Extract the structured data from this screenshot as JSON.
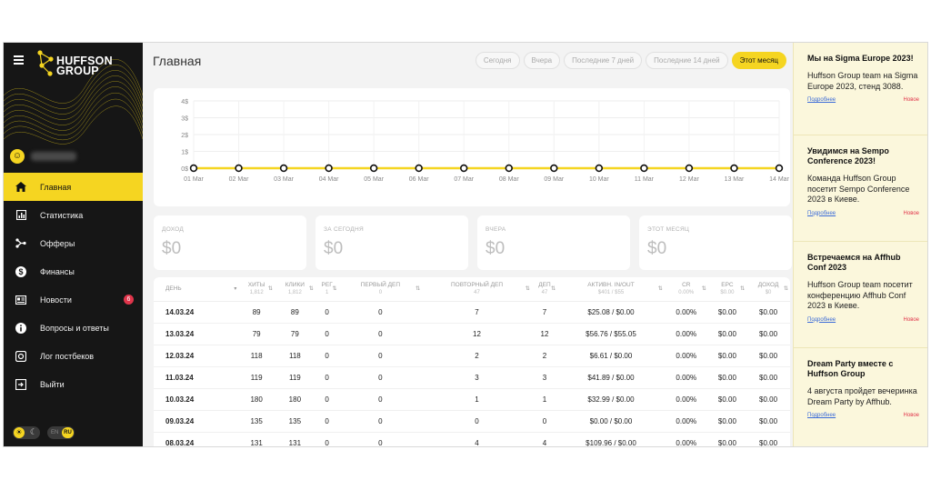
{
  "brand": {
    "logo_text_line1": "HUFFSON",
    "logo_text_line2": "GROUP",
    "accent": "#f5d521",
    "sidebar_bg": "#161616"
  },
  "sidebar": {
    "avatar_initial": "",
    "items": [
      {
        "label": "Главная",
        "icon": "home-icon",
        "active": true
      },
      {
        "label": "Статистика",
        "icon": "stats-icon"
      },
      {
        "label": "Офферы",
        "icon": "offers-icon"
      },
      {
        "label": "Финансы",
        "icon": "dollar-icon"
      },
      {
        "label": "Новости",
        "icon": "news-icon",
        "badge": "6"
      },
      {
        "label": "Вопросы и ответы",
        "icon": "info-icon"
      },
      {
        "label": "Лог постбеков",
        "icon": "log-icon"
      },
      {
        "label": "Выйти",
        "icon": "logout-icon"
      }
    ],
    "lang_en": "EN",
    "lang_ru": "RU"
  },
  "header": {
    "title": "Главная",
    "filters": [
      "Сегодня",
      "Вчера",
      "Последние 7 дней",
      "Последние 14 дней",
      "Этот месяц"
    ],
    "active_filter": "Этот месяц"
  },
  "chart_data": {
    "type": "line",
    "x": [
      "01 Mar",
      "02 Mar",
      "03 Mar",
      "04 Mar",
      "05 Mar",
      "06 Mar",
      "07 Mar",
      "08 Mar",
      "09 Mar",
      "10 Mar",
      "11 Mar",
      "12 Mar",
      "13 Mar",
      "14 Mar"
    ],
    "series": [
      {
        "values": [
          0,
          0,
          0,
          0,
          0,
          0,
          0,
          0,
          0,
          0,
          0,
          0,
          0,
          0
        ],
        "color": "#f5d521"
      }
    ],
    "yticks": [
      "4$",
      "3$",
      "2$",
      "1$",
      "0$"
    ],
    "ylim": [
      0,
      4
    ],
    "grid": true
  },
  "stats": [
    {
      "label": "ДОХОД",
      "value": "$0"
    },
    {
      "label": "ЗА СЕГОДНЯ",
      "value": "$0"
    },
    {
      "label": "ВЧЕРА",
      "value": "$0"
    },
    {
      "label": "ЭТОТ МЕСЯЦ",
      "value": "$0"
    }
  ],
  "table": {
    "columns": [
      {
        "label": "ДЕНЬ",
        "sub": ""
      },
      {
        "label": "ХИТЫ",
        "sub": "1,812"
      },
      {
        "label": "КЛИКИ",
        "sub": "1,812"
      },
      {
        "label": "РЕГ",
        "sub": "1"
      },
      {
        "label": "ПЕРВЫЙ ДЕП",
        "sub": "0"
      },
      {
        "label": "ПОВТОРНЫЙ ДЕП",
        "sub": "47"
      },
      {
        "label": "ДЕП",
        "sub": "47"
      },
      {
        "label": "АКТИВН. IN/OUT",
        "sub": "$401 / $55"
      },
      {
        "label": "CR",
        "sub": "0.00%"
      },
      {
        "label": "EPC",
        "sub": "$0.00"
      },
      {
        "label": "ДОХОД",
        "sub": "$0"
      }
    ],
    "rows": [
      [
        "14.03.24",
        "89",
        "89",
        "0",
        "0",
        "7",
        "7",
        "$25.08 / $0.00",
        "0.00%",
        "$0.00",
        "$0.00"
      ],
      [
        "13.03.24",
        "79",
        "79",
        "0",
        "0",
        "12",
        "12",
        "$56.76 / $55.05",
        "0.00%",
        "$0.00",
        "$0.00"
      ],
      [
        "12.03.24",
        "118",
        "118",
        "0",
        "0",
        "2",
        "2",
        "$6.61 / $0.00",
        "0.00%",
        "$0.00",
        "$0.00"
      ],
      [
        "11.03.24",
        "119",
        "119",
        "0",
        "0",
        "3",
        "3",
        "$41.89 / $0.00",
        "0.00%",
        "$0.00",
        "$0.00"
      ],
      [
        "10.03.24",
        "180",
        "180",
        "0",
        "0",
        "1",
        "1",
        "$32.99 / $0.00",
        "0.00%",
        "$0.00",
        "$0.00"
      ],
      [
        "09.03.24",
        "135",
        "135",
        "0",
        "0",
        "0",
        "0",
        "$0.00 / $0.00",
        "0.00%",
        "$0.00",
        "$0.00"
      ],
      [
        "08.03.24",
        "131",
        "131",
        "0",
        "0",
        "4",
        "4",
        "$109.96 / $0.00",
        "0.00%",
        "$0.00",
        "$0.00"
      ]
    ]
  },
  "news": [
    {
      "title": "Мы на Sigma Europe 2023!",
      "text": "Huffson Group team на Sigma Europe 2023, стенд 3088.",
      "more": "Подробнее",
      "tag": "Новое"
    },
    {
      "title": "Увидимся на Sempo Conference 2023!",
      "text": "Команда Huffson Group посетит Sempo Conference 2023 в Киеве.",
      "more": "Подробнее",
      "tag": "Новое"
    },
    {
      "title": "Встречаемся на Affhub Conf 2023",
      "text": "Huffson Group team посетит конференцию Affhub Conf 2023 в Киеве.",
      "more": "Подробнее",
      "tag": "Новое"
    },
    {
      "title": "Dream Party вместе с Huffson Group",
      "text": "4 августа пройдет вечеринка Dream Party by Affhub.",
      "more": "Подробнее",
      "tag": "Новое"
    }
  ]
}
